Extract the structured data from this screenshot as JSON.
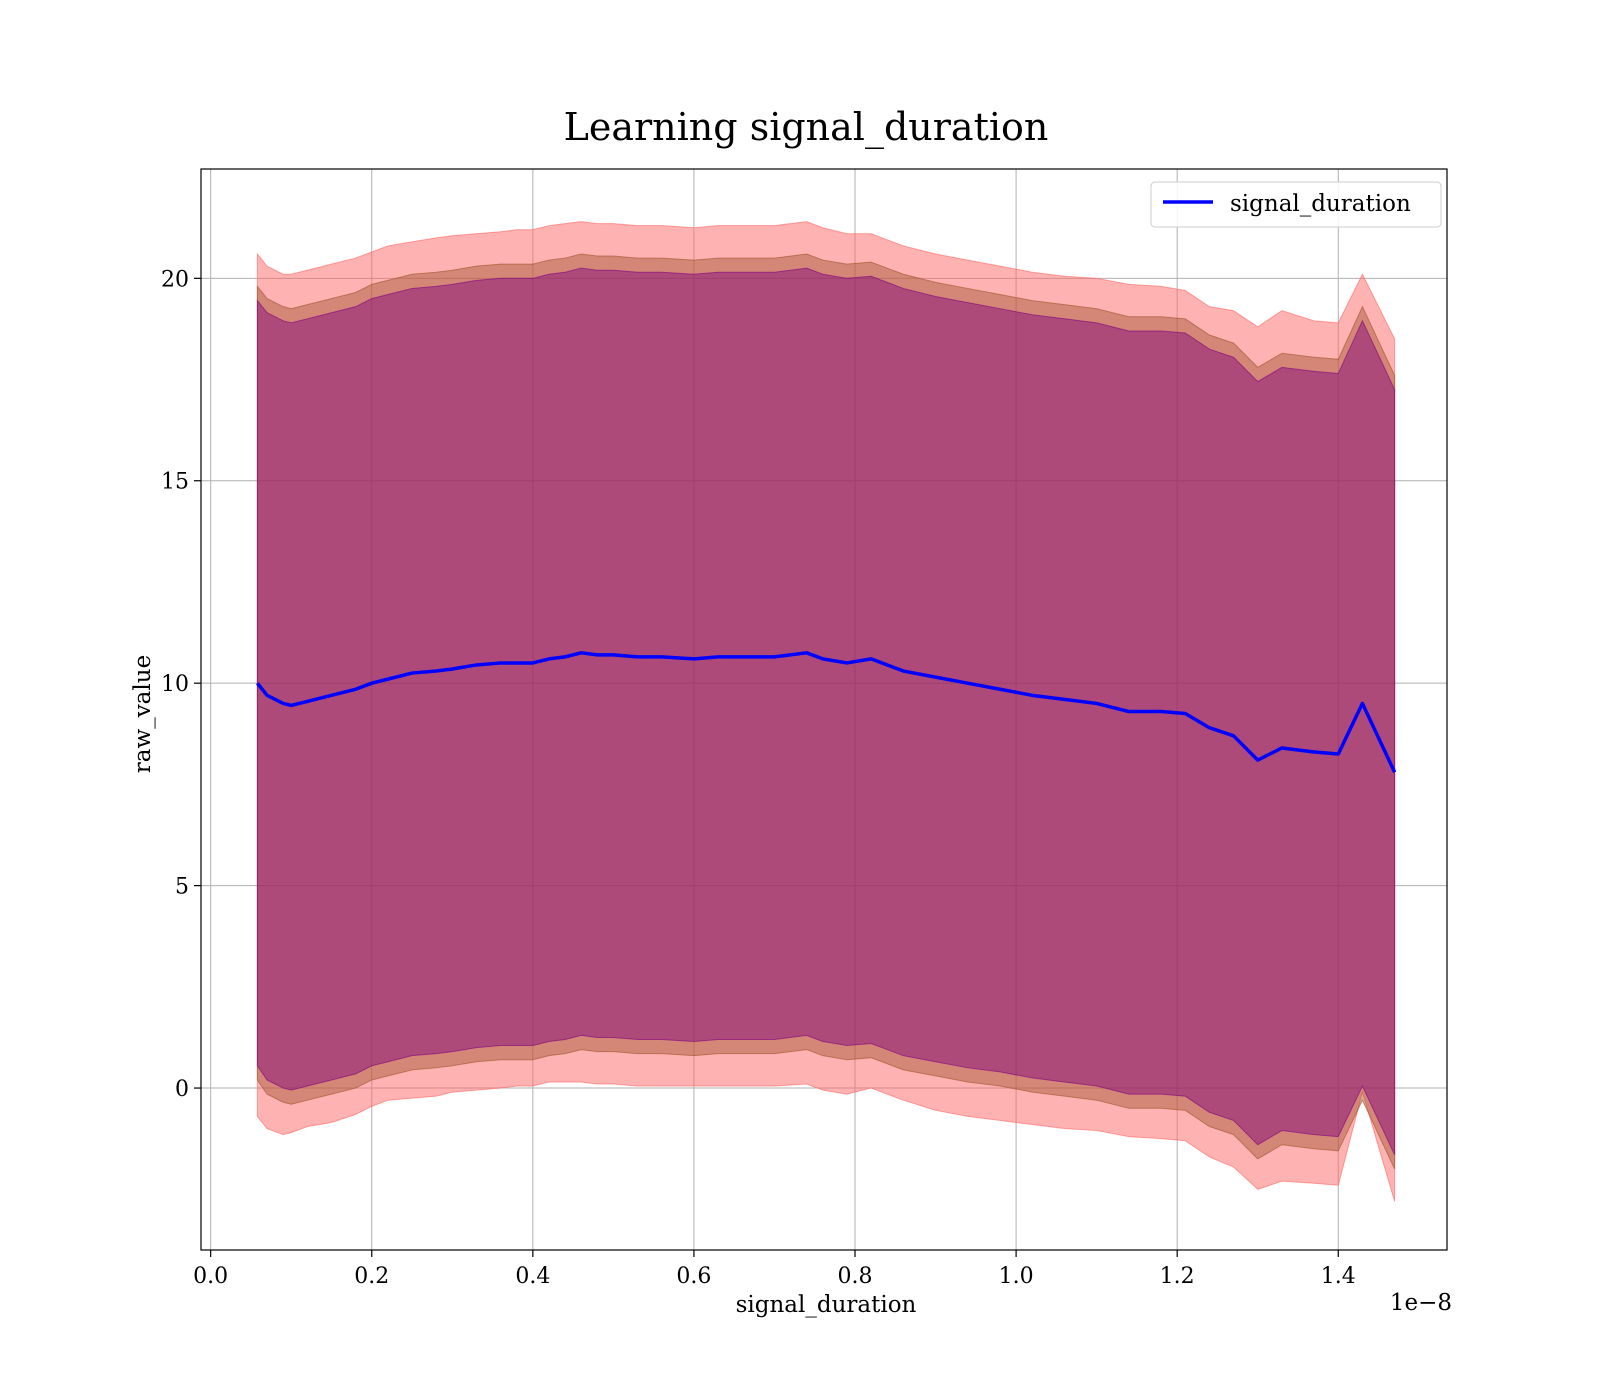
{
  "chart_data": {
    "type": "line",
    "title": "Learning signal_duration",
    "xlabel": "signal_duration",
    "ylabel": "raw_value",
    "x_scale_label": "1e−8",
    "xlim": [
      -0.012,
      1.535
    ],
    "ylim": [
      -4.0,
      22.7
    ],
    "xticks": [
      0.0,
      0.2,
      0.4,
      0.6,
      0.8,
      1.0,
      1.2,
      1.4
    ],
    "xtick_labels": [
      "0.0",
      "0.2",
      "0.4",
      "0.6",
      "0.8",
      "1.0",
      "1.2",
      "1.4"
    ],
    "yticks": [
      0,
      5,
      10,
      15,
      20
    ],
    "ytick_labels": [
      "0",
      "5",
      "10",
      "15",
      "20"
    ],
    "grid": true,
    "legend_position": "top-right",
    "colors": {
      "line": "#0000ff",
      "outer_band": "#ff6666",
      "middle_band": "#a0522d",
      "inner_band": "#800080"
    },
    "x": [
      0.058,
      0.07,
      0.09,
      0.1,
      0.12,
      0.15,
      0.18,
      0.2,
      0.22,
      0.25,
      0.28,
      0.3,
      0.33,
      0.36,
      0.38,
      0.4,
      0.42,
      0.44,
      0.46,
      0.48,
      0.5,
      0.53,
      0.56,
      0.6,
      0.63,
      0.66,
      0.7,
      0.74,
      0.76,
      0.79,
      0.82,
      0.86,
      0.9,
      0.94,
      0.98,
      1.02,
      1.06,
      1.1,
      1.14,
      1.18,
      1.21,
      1.24,
      1.27,
      1.3,
      1.33,
      1.37,
      1.4,
      1.43,
      1.47
    ],
    "series": [
      {
        "name": "signal_duration",
        "values": [
          10.0,
          9.7,
          9.5,
          9.45,
          9.55,
          9.7,
          9.85,
          10.0,
          10.1,
          10.25,
          10.3,
          10.35,
          10.45,
          10.5,
          10.5,
          10.5,
          10.6,
          10.65,
          10.75,
          10.7,
          10.7,
          10.65,
          10.65,
          10.6,
          10.65,
          10.65,
          10.65,
          10.75,
          10.6,
          10.5,
          10.6,
          10.3,
          10.15,
          10.0,
          9.85,
          9.7,
          9.6,
          9.5,
          9.3,
          9.3,
          9.25,
          8.9,
          8.7,
          8.1,
          8.4,
          8.3,
          8.25,
          9.5,
          7.8
        ]
      }
    ],
    "bands": [
      {
        "upper": [
          20.6,
          20.3,
          20.1,
          20.1,
          20.2,
          20.35,
          20.5,
          20.65,
          20.8,
          20.9,
          21.0,
          21.05,
          21.1,
          21.15,
          21.2,
          21.2,
          21.3,
          21.35,
          21.4,
          21.35,
          21.35,
          21.3,
          21.3,
          21.25,
          21.3,
          21.3,
          21.3,
          21.4,
          21.25,
          21.1,
          21.1,
          20.8,
          20.6,
          20.45,
          20.3,
          20.15,
          20.05,
          20.0,
          19.85,
          19.8,
          19.7,
          19.3,
          19.2,
          18.8,
          19.2,
          18.95,
          18.9,
          20.1,
          18.5
        ],
        "lower": [
          -0.7,
          -1.0,
          -1.15,
          -1.1,
          -0.95,
          -0.85,
          -0.65,
          -0.45,
          -0.3,
          -0.25,
          -0.2,
          -0.1,
          -0.05,
          0.0,
          0.05,
          0.05,
          0.15,
          0.15,
          0.15,
          0.1,
          0.1,
          0.05,
          0.05,
          0.05,
          0.05,
          0.05,
          0.05,
          0.1,
          -0.05,
          -0.15,
          0.0,
          -0.3,
          -0.55,
          -0.7,
          -0.8,
          -0.9,
          -1.0,
          -1.05,
          -1.2,
          -1.25,
          -1.3,
          -1.7,
          -1.95,
          -2.5,
          -2.3,
          -2.35,
          -2.4,
          -0.1,
          -2.8
        ]
      },
      {
        "upper": [
          19.8,
          19.5,
          19.3,
          19.25,
          19.35,
          19.5,
          19.65,
          19.85,
          19.95,
          20.1,
          20.15,
          20.2,
          20.3,
          20.35,
          20.35,
          20.35,
          20.45,
          20.5,
          20.6,
          20.55,
          20.55,
          20.5,
          20.5,
          20.45,
          20.5,
          20.5,
          20.5,
          20.6,
          20.45,
          20.35,
          20.4,
          20.1,
          19.9,
          19.75,
          19.6,
          19.45,
          19.35,
          19.25,
          19.05,
          19.05,
          19.0,
          18.6,
          18.4,
          17.8,
          18.15,
          18.05,
          18.0,
          19.3,
          17.6
        ],
        "lower": [
          0.2,
          -0.15,
          -0.35,
          -0.4,
          -0.3,
          -0.15,
          0.0,
          0.2,
          0.3,
          0.45,
          0.5,
          0.55,
          0.65,
          0.7,
          0.7,
          0.7,
          0.8,
          0.85,
          0.95,
          0.9,
          0.9,
          0.85,
          0.85,
          0.8,
          0.85,
          0.85,
          0.85,
          0.95,
          0.8,
          0.7,
          0.75,
          0.45,
          0.3,
          0.15,
          0.05,
          -0.1,
          -0.2,
          -0.3,
          -0.5,
          -0.5,
          -0.55,
          -0.95,
          -1.15,
          -1.75,
          -1.4,
          -1.5,
          -1.55,
          -0.3,
          -2.0
        ]
      },
      {
        "upper": [
          19.45,
          19.15,
          18.95,
          18.9,
          19.0,
          19.15,
          19.3,
          19.5,
          19.6,
          19.75,
          19.8,
          19.85,
          19.95,
          20.0,
          20.0,
          20.0,
          20.1,
          20.15,
          20.25,
          20.2,
          20.2,
          20.15,
          20.15,
          20.1,
          20.15,
          20.15,
          20.15,
          20.25,
          20.1,
          20.0,
          20.05,
          19.75,
          19.55,
          19.4,
          19.25,
          19.1,
          19.0,
          18.9,
          18.7,
          18.7,
          18.65,
          18.25,
          18.05,
          17.45,
          17.8,
          17.7,
          17.65,
          18.95,
          17.25
        ],
        "lower": [
          0.55,
          0.2,
          0.0,
          -0.05,
          0.05,
          0.2,
          0.35,
          0.55,
          0.65,
          0.8,
          0.85,
          0.9,
          1.0,
          1.05,
          1.05,
          1.05,
          1.15,
          1.2,
          1.3,
          1.25,
          1.25,
          1.2,
          1.2,
          1.15,
          1.2,
          1.2,
          1.2,
          1.3,
          1.15,
          1.05,
          1.1,
          0.8,
          0.65,
          0.5,
          0.4,
          0.25,
          0.15,
          0.05,
          -0.15,
          -0.15,
          -0.2,
          -0.6,
          -0.8,
          -1.4,
          -1.05,
          -1.15,
          -1.2,
          0.05,
          -1.65
        ]
      }
    ]
  }
}
